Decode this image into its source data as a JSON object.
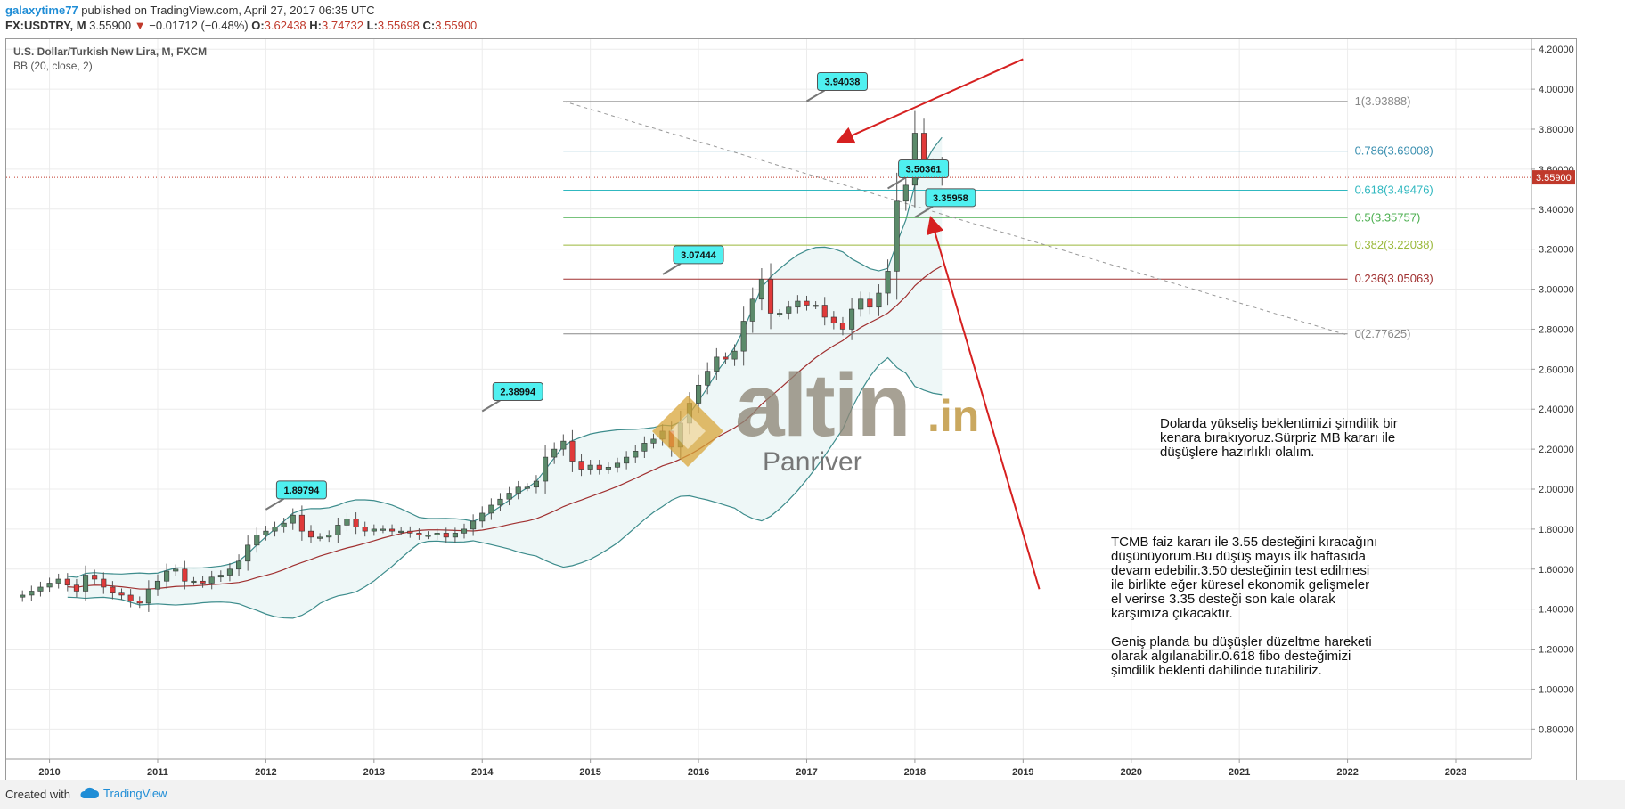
{
  "header": {
    "user": "galaxytime77",
    "published": "published on TradingView.com, April 27, 2017 06:35 UTC",
    "symbol": "FX:USDTRY, M",
    "last": "3.55900",
    "change": "−0.01712 (−0.48%)",
    "o_label": "O:",
    "o": "3.62438",
    "h_label": "H:",
    "h": "3.74732",
    "l_label": "L:",
    "l": "3.55698",
    "c_label": "C:",
    "c": "3.55900"
  },
  "legend": {
    "title": "U.S. Dollar/Turkish New Lira, M, FXCM",
    "indicator": "BB (20, close, 2)"
  },
  "watermark": {
    "brand": "altin",
    "tld": ".in",
    "sub": "Panriver"
  },
  "notes": {
    "note1": "Dolarda yükseliş beklentimizi şimdilik bir\nkenara bırakıyoruz.Sürpriz MB kararı ile\ndüşüşlere hazırlıklı olalım.",
    "note2": "TCMB faiz kararı ile 3.55 desteğini kıracağını\ndüşünüyorum.Bu düşüş mayıs ilk haftasıda\ndevam edebilir.3.50 desteğinin test edilmesi\nile birlikte eğer küresel ekonomik gelişmeler\nel verirse 3.35 desteği son kale olarak\nkarşımıza çıkacaktır.\n\nGeniş planda bu düşüşler düzeltme hareketi\nolarak algılanabilir.0.618 fibo desteğimizi\nşimdilik beklenti dahilinde tutabiliriz."
  },
  "footer": {
    "created_with": "Created with",
    "brand": "TradingView"
  },
  "colors": {
    "up": "#5b8a6a",
    "down": "#e03a3a",
    "bb_band": "#3d8c8c",
    "bb_mid": "#a03030",
    "bb_fill": "#eef7f7",
    "price_tag": "#c0392b",
    "callout": "#4ff0f0"
  },
  "chart_data": {
    "type": "candlestick",
    "title": "U.S. Dollar/Turkish New Lira, M, FXCM",
    "x_ticks": [
      "2010",
      "2011",
      "2012",
      "2013",
      "2014",
      "2015",
      "2016",
      "2017",
      "2018",
      "2019",
      "2020",
      "2021",
      "2022",
      "2023"
    ],
    "y_ticks": [
      "4.20000",
      "4.00000",
      "3.80000",
      "3.60000",
      "3.40000",
      "3.20000",
      "3.00000",
      "2.80000",
      "2.60000",
      "2.40000",
      "2.20000",
      "2.00000",
      "1.80000",
      "1.60000",
      "1.40000",
      "1.20000",
      "1.00000",
      "0.80000"
    ],
    "ylim": [
      0.65,
      4.25
    ],
    "xlim": [
      2009.6,
      2023.7
    ],
    "last_price": "3.55900",
    "fib_levels": [
      {
        "label": "1(3.93888)",
        "value": 3.93888,
        "color": "#888888"
      },
      {
        "label": "0.786(3.69008)",
        "value": 3.69008,
        "color": "#3a8fb0"
      },
      {
        "label": "0.618(3.49476)",
        "value": 3.49476,
        "color": "#30b8c0"
      },
      {
        "label": "0.5(3.35757)",
        "value": 3.35757,
        "color": "#4caf50"
      },
      {
        "label": "0.382(3.22038)",
        "value": 3.22038,
        "color": "#9ab83a"
      },
      {
        "label": "0.236(3.05063)",
        "value": 3.05063,
        "color": "#a03030"
      },
      {
        "label": "0(2.77625)",
        "value": 2.77625,
        "color": "#888888"
      }
    ],
    "callouts": [
      {
        "text": "1.89794",
        "x": 2012.0,
        "y": 1.89794
      },
      {
        "text": "2.38994",
        "x": 2014.0,
        "y": 2.38994
      },
      {
        "text": "3.07444",
        "x": 2015.67,
        "y": 3.07444
      },
      {
        "text": "3.94038",
        "x": 2017.0,
        "y": 3.94038
      },
      {
        "text": "3.50361",
        "x": 2017.75,
        "y": 3.50361
      },
      {
        "text": "3.35958",
        "x": 2018.0,
        "y": 3.35958
      }
    ],
    "candles_close": [
      1.47,
      1.49,
      1.51,
      1.53,
      1.55,
      1.52,
      1.49,
      1.57,
      1.55,
      1.51,
      1.48,
      1.47,
      1.44,
      1.43,
      1.5,
      1.54,
      1.59,
      1.6,
      1.54,
      1.54,
      1.53,
      1.56,
      1.57,
      1.6,
      1.64,
      1.72,
      1.77,
      1.79,
      1.81,
      1.83,
      1.87,
      1.79,
      1.76,
      1.76,
      1.77,
      1.82,
      1.85,
      1.81,
      1.79,
      1.8,
      1.8,
      1.79,
      1.79,
      1.78,
      1.77,
      1.77,
      1.78,
      1.76,
      1.78,
      1.8,
      1.84,
      1.88,
      1.92,
      1.95,
      1.98,
      2.01,
      2.01,
      2.04,
      2.16,
      2.2,
      2.24,
      2.14,
      2.1,
      2.12,
      2.1,
      2.11,
      2.13,
      2.16,
      2.19,
      2.23,
      2.25,
      2.29,
      2.21,
      2.33,
      2.43,
      2.52,
      2.59,
      2.66,
      2.65,
      2.69,
      2.84,
      2.95,
      3.05,
      2.88,
      2.88,
      2.91,
      2.94,
      2.92,
      2.92,
      2.86,
      2.83,
      2.8,
      2.9,
      2.95,
      2.91,
      2.98,
      3.09,
      3.44,
      3.52,
      3.78,
      3.63,
      3.62,
      3.559
    ]
  }
}
